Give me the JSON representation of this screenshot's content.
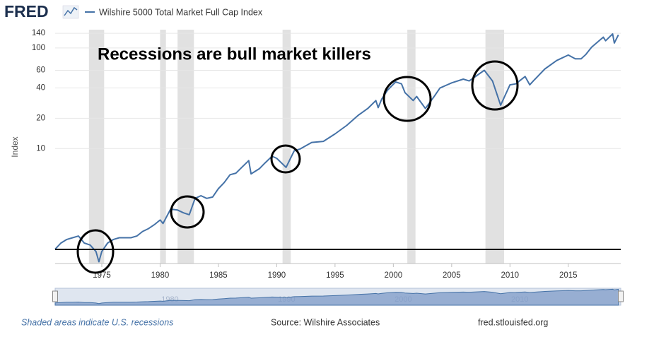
{
  "brand": "FRED",
  "chart_data": {
    "type": "line",
    "scale": "log",
    "grid": true,
    "legend": "Wilshire 5000 Total Market Full Cap Index",
    "ylabel": "Index",
    "annotation": "Recessions are bull market killers",
    "xlim": [
      1971,
      2019.5
    ],
    "ylim": [
      0.72,
      152
    ],
    "xticks": [
      1975,
      1980,
      1985,
      1990,
      1995,
      2000,
      2005,
      2010,
      2015
    ],
    "yticks": [
      10,
      20,
      40,
      60,
      100,
      140
    ],
    "navigator_ticks": [
      1980,
      1990,
      2000,
      2010
    ],
    "recessions": [
      [
        1973.9,
        1975.2
      ],
      [
        1980.0,
        1980.5
      ],
      [
        1981.5,
        1982.9
      ],
      [
        1990.5,
        1991.2
      ],
      [
        2001.2,
        2001.9
      ],
      [
        2007.9,
        2009.5
      ]
    ],
    "series": [
      {
        "name": "Wilshire 5000 Total Market Full Cap Index",
        "color": "#4572a7",
        "x": [
          1971,
          1971.5,
          1972,
          1972.5,
          1973,
          1973.5,
          1974,
          1974.5,
          1974.75,
          1975,
          1975.5,
          1976,
          1976.5,
          1977,
          1977.5,
          1978,
          1978.5,
          1979,
          1979.5,
          1980,
          1980.25,
          1980.9,
          1981.5,
          1982,
          1982.5,
          1983,
          1983.5,
          1984,
          1984.5,
          1985,
          1985.5,
          1986,
          1986.5,
          1987,
          1987.6,
          1987.8,
          1988.5,
          1989,
          1989.6,
          1990,
          1990.8,
          1991.5,
          1992,
          1993,
          1994,
          1995,
          1996,
          1997,
          1997.8,
          1998.5,
          1998.7,
          1999,
          1999.5,
          2000.2,
          2000.7,
          2001,
          2001.7,
          2002,
          2002.75,
          2003.5,
          2004,
          2005,
          2006,
          2006.5,
          2007.8,
          2008.5,
          2009.2,
          2010,
          2010.5,
          2011.3,
          2011.7,
          2012,
          2013,
          2014,
          2015,
          2015.6,
          2016.1,
          2016.5,
          2017,
          2018,
          2018.2,
          2018.8,
          2018.95,
          2019.3
        ],
        "values": [
          1.0,
          1.15,
          1.25,
          1.3,
          1.35,
          1.15,
          1.1,
          0.95,
          0.75,
          0.95,
          1.15,
          1.25,
          1.3,
          1.3,
          1.3,
          1.35,
          1.5,
          1.6,
          1.75,
          1.95,
          1.8,
          2.5,
          2.45,
          2.3,
          2.2,
          3.2,
          3.4,
          3.2,
          3.3,
          4.0,
          4.6,
          5.5,
          5.7,
          6.5,
          7.6,
          5.6,
          6.3,
          7.2,
          8.4,
          8.0,
          6.5,
          9.5,
          9.9,
          11.5,
          11.8,
          14.0,
          17.0,
          21.5,
          25,
          30,
          25.5,
          31,
          38,
          46,
          44,
          36,
          30,
          33,
          25,
          33,
          40,
          45,
          49,
          47,
          60,
          47,
          27,
          43,
          44,
          52,
          43,
          47,
          62,
          75,
          85,
          78,
          78,
          86,
          102,
          128,
          118,
          138,
          112,
          135
        ]
      }
    ]
  },
  "footer": {
    "note": "Shaded areas indicate U.S. recessions",
    "source": "Source: Wilshire Associates",
    "site": "fred.stlouisfed.org"
  }
}
